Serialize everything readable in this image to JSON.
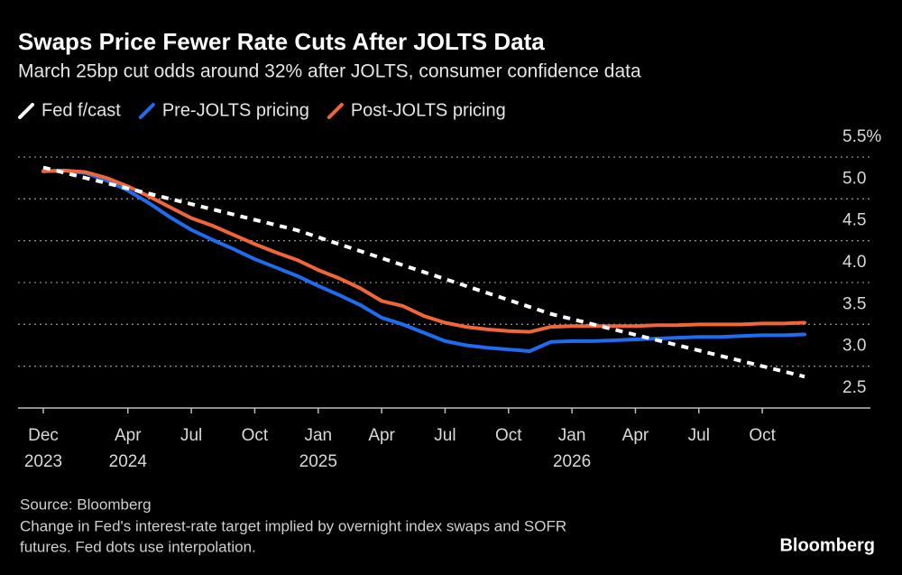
{
  "chart_data": {
    "type": "line",
    "title": "Swaps Price Fewer Rate Cuts After JOLTS Data",
    "subtitle": "March 25bp cut odds around 32% after JOLTS, consumer confidence data",
    "x": [
      "2023-12",
      "2024-01",
      "2024-02",
      "2024-03",
      "2024-04",
      "2024-05",
      "2024-06",
      "2024-07",
      "2024-08",
      "2024-09",
      "2024-10",
      "2024-11",
      "2024-12",
      "2025-01",
      "2025-02",
      "2025-03",
      "2025-04",
      "2025-05",
      "2025-06",
      "2025-07",
      "2025-08",
      "2025-09",
      "2025-10",
      "2025-11",
      "2025-12",
      "2026-01",
      "2026-02",
      "2026-03",
      "2026-04",
      "2026-05",
      "2026-06",
      "2026-07",
      "2026-08",
      "2026-09",
      "2026-10",
      "2026-11",
      "2026-12"
    ],
    "series": [
      {
        "name": "Fed f/cast",
        "color": "#ffffff",
        "dashed": true,
        "values": [
          5.375,
          5.313,
          5.25,
          5.188,
          5.125,
          5.063,
          5.0,
          4.938,
          4.875,
          4.813,
          4.75,
          4.688,
          4.625,
          4.542,
          4.458,
          4.375,
          4.292,
          4.208,
          4.125,
          4.042,
          3.958,
          3.875,
          3.792,
          3.708,
          3.625,
          3.563,
          3.5,
          3.438,
          3.375,
          3.313,
          3.25,
          3.188,
          3.125,
          3.063,
          3.0,
          2.938,
          2.875
        ]
      },
      {
        "name": "Pre-JOLTS pricing",
        "color": "#1f6cf0",
        "dashed": false,
        "values": [
          5.33,
          5.34,
          5.31,
          5.22,
          5.1,
          4.95,
          4.78,
          4.63,
          4.51,
          4.4,
          4.28,
          4.18,
          4.08,
          3.96,
          3.85,
          3.73,
          3.58,
          3.5,
          3.4,
          3.3,
          3.25,
          3.22,
          3.2,
          3.18,
          3.29,
          3.3,
          3.3,
          3.31,
          3.32,
          3.33,
          3.34,
          3.35,
          3.35,
          3.36,
          3.37,
          3.37,
          3.38
        ]
      },
      {
        "name": "Post-JOLTS pricing",
        "color": "#f0653a",
        "dashed": false,
        "values": [
          5.33,
          5.34,
          5.32,
          5.25,
          5.15,
          5.03,
          4.9,
          4.77,
          4.68,
          4.57,
          4.46,
          4.36,
          4.27,
          4.15,
          4.05,
          3.93,
          3.78,
          3.72,
          3.6,
          3.52,
          3.47,
          3.44,
          3.42,
          3.41,
          3.47,
          3.48,
          3.48,
          3.48,
          3.48,
          3.49,
          3.49,
          3.5,
          3.5,
          3.5,
          3.51,
          3.51,
          3.52
        ]
      }
    ],
    "ylim": [
      2.5,
      5.5
    ],
    "yticks": [
      {
        "value": 2.5,
        "label": "2.5"
      },
      {
        "value": 3,
        "label": "3.0"
      },
      {
        "value": 3.5,
        "label": "3.5"
      },
      {
        "value": 4,
        "label": "4.0"
      },
      {
        "value": 4.5,
        "label": "4.5"
      },
      {
        "value": 5,
        "label": "5.0"
      },
      {
        "value": 5.5,
        "label": "5.5%"
      }
    ],
    "xticks": [
      {
        "value": "2023-12",
        "label": [
          "Dec",
          "2023"
        ]
      },
      {
        "value": "2024-04",
        "label": [
          "Apr",
          "2024"
        ]
      },
      {
        "value": "2024-07",
        "label": [
          "Jul"
        ]
      },
      {
        "value": "2024-10",
        "label": [
          "Oct"
        ]
      },
      {
        "value": "2025-01",
        "label": [
          "Jan",
          "2025"
        ]
      },
      {
        "value": "2025-04",
        "label": [
          "Apr"
        ]
      },
      {
        "value": "2025-07",
        "label": [
          "Jul"
        ]
      },
      {
        "value": "2025-10",
        "label": [
          "Oct"
        ]
      },
      {
        "value": "2026-01",
        "label": [
          "Jan",
          "2026"
        ]
      },
      {
        "value": "2026-04",
        "label": [
          "Apr"
        ]
      },
      {
        "value": "2026-07",
        "label": [
          "Jul"
        ]
      },
      {
        "value": "2026-10",
        "label": [
          "Oct"
        ]
      }
    ],
    "grid": true,
    "source": "Source: Bloomberg",
    "note": [
      "Change in Fed's interest-rate target implied by overnight index swaps and SOFR",
      "futures. Fed dots use interpolation."
    ],
    "logo": "Bloomberg"
  }
}
